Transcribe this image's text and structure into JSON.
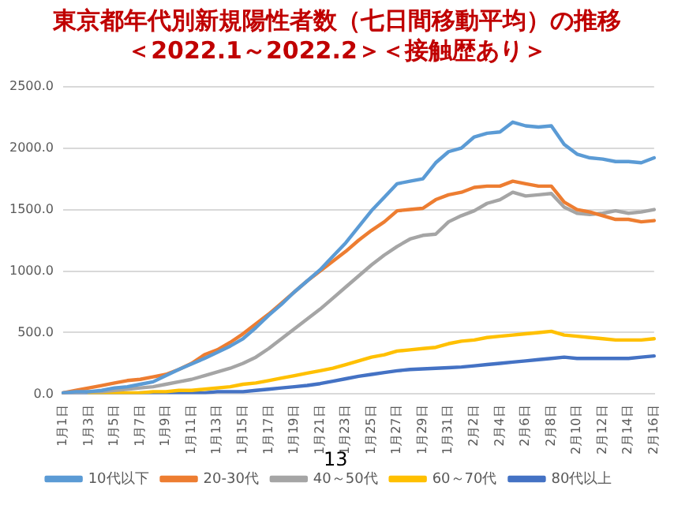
{
  "chart_data": {
    "type": "line",
    "title": "東京都年代別新規陽性者数（七日間移動平均）の推移",
    "subtitle": "＜2022.1～2022.2＞＜接触歴あり＞",
    "categories": [
      "1月1日",
      null,
      "1月3日",
      null,
      "1月5日",
      null,
      "1月7日",
      null,
      "1月9日",
      null,
      "1月11日",
      null,
      "1月13日",
      null,
      "1月15日",
      null,
      "1月17日",
      null,
      "1月19日",
      null,
      "1月21日",
      null,
      "1月23日",
      null,
      "1月25日",
      null,
      "1月27日",
      null,
      "1月29日",
      null,
      "1月31日",
      null,
      "2月2日",
      null,
      "2月4日",
      null,
      "2月6日",
      null,
      "2月8日",
      null,
      "2月10日",
      null,
      "2月12日",
      null,
      "2月14日",
      null,
      "2月16日"
    ],
    "series": [
      {
        "name": "10代以下",
        "color": "#5b9bd5",
        "values": [
          10,
          20,
          20,
          30,
          50,
          60,
          80,
          100,
          150,
          200,
          245,
          290,
          340,
          390,
          450,
          540,
          640,
          730,
          830,
          920,
          1010,
          1120,
          1230,
          1360,
          1490,
          1600,
          1710,
          1730,
          1750,
          1880,
          1970,
          2000,
          2090,
          2120,
          2130,
          2210,
          2180,
          2170,
          2180,
          2030,
          1950,
          1920,
          1910,
          1890,
          1890,
          1880,
          1920
        ]
      },
      {
        "name": "20-30代",
        "color": "#ed7d31",
        "values": [
          10,
          30,
          50,
          70,
          90,
          110,
          120,
          140,
          160,
          200,
          250,
          320,
          360,
          420,
          490,
          570,
          650,
          740,
          830,
          920,
          1000,
          1080,
          1160,
          1250,
          1330,
          1400,
          1490,
          1500,
          1510,
          1580,
          1620,
          1640,
          1680,
          1690,
          1690,
          1730,
          1710,
          1690,
          1690,
          1560,
          1500,
          1480,
          1450,
          1420,
          1420,
          1400,
          1410
        ]
      },
      {
        "name": "40～50代",
        "color": "#a5a5a5",
        "values": [
          10,
          10,
          20,
          20,
          30,
          40,
          50,
          60,
          80,
          100,
          120,
          150,
          180,
          210,
          250,
          300,
          370,
          450,
          530,
          610,
          690,
          780,
          870,
          960,
          1050,
          1130,
          1200,
          1260,
          1290,
          1300,
          1400,
          1450,
          1490,
          1550,
          1580,
          1640,
          1610,
          1620,
          1630,
          1520,
          1470,
          1460,
          1470,
          1490,
          1470,
          1480,
          1500
        ]
      },
      {
        "name": "60～70代",
        "color": "#ffc000",
        "values": [
          null,
          null,
          10,
          10,
          10,
          10,
          10,
          20,
          20,
          30,
          30,
          40,
          50,
          60,
          80,
          90,
          110,
          130,
          150,
          170,
          190,
          210,
          240,
          270,
          300,
          320,
          350,
          360,
          370,
          380,
          410,
          430,
          440,
          460,
          470,
          480,
          490,
          500,
          510,
          480,
          470,
          460,
          450,
          440,
          440,
          440,
          450
        ]
      },
      {
        "name": "80代以上",
        "color": "#4472c4",
        "values": [
          0,
          0,
          0,
          0,
          0,
          0,
          10,
          10,
          10,
          10,
          10,
          10,
          20,
          20,
          20,
          30,
          40,
          50,
          60,
          70,
          85,
          105,
          125,
          145,
          160,
          175,
          190,
          200,
          205,
          210,
          215,
          220,
          230,
          240,
          250,
          260,
          270,
          280,
          290,
          300,
          290,
          290,
          290,
          290,
          290,
          300,
          310
        ]
      }
    ],
    "ylim": [
      0,
      2500
    ],
    "yticks": [
      {
        "value": 0,
        "label": "0.0"
      },
      {
        "value": 500,
        "label": "500.0"
      },
      {
        "value": 1000,
        "label": "1000.0"
      },
      {
        "value": 1500,
        "label": "1500.0"
      },
      {
        "value": 2000,
        "label": "2000.0"
      },
      {
        "value": 2500,
        "label": "2500.0"
      }
    ],
    "grid": "y",
    "legend": "bottom",
    "marker": "none",
    "line_style": "solid",
    "annotations": [
      "13"
    ]
  }
}
